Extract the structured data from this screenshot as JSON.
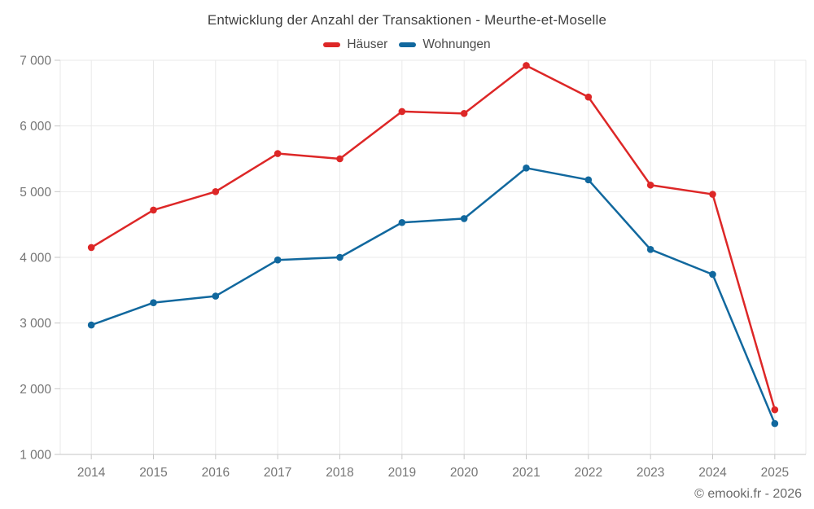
{
  "title": "Entwicklung der Anzahl der Transaktionen - Meurthe-et-Moselle",
  "footer": "© emooki.fr - 2026",
  "colors": {
    "background": "#ffffff",
    "grid": "#e9e9e9",
    "axis": "#c6c6c6",
    "tick_text": "#757575",
    "title_text": "#3f3f3f",
    "legend_text": "#4b4b4b",
    "footer_text": "#6a6a6a"
  },
  "chart_data": {
    "type": "line",
    "title": "Entwicklung der Anzahl der Transaktionen - Meurthe-et-Moselle",
    "xlabel": "",
    "ylabel": "",
    "categories": [
      "2014",
      "2015",
      "2016",
      "2017",
      "2018",
      "2019",
      "2020",
      "2021",
      "2022",
      "2023",
      "2024",
      "2025"
    ],
    "series": [
      {
        "id": "haeuser",
        "name": "Häuser",
        "color": "#dd2727",
        "values": [
          4150,
          4720,
          5000,
          5580,
          5500,
          6220,
          6190,
          6920,
          6440,
          5100,
          4960,
          1680
        ]
      },
      {
        "id": "wohnungen",
        "name": "Wohnungen",
        "color": "#11689e",
        "values": [
          2970,
          3310,
          3410,
          3960,
          4000,
          4530,
          4590,
          5360,
          5180,
          4120,
          3740,
          1470
        ]
      }
    ],
    "y_tick_labels": [
      "7 000",
      "6 000",
      "5 000",
      "4 000",
      "3 000",
      "2 000",
      "1 000"
    ],
    "y_tick_values": [
      7000,
      6000,
      5000,
      4000,
      3000,
      2000,
      1000
    ],
    "ylim": [
      1000,
      7000
    ],
    "grid": true,
    "legend_position": "top",
    "marker": "circle"
  }
}
